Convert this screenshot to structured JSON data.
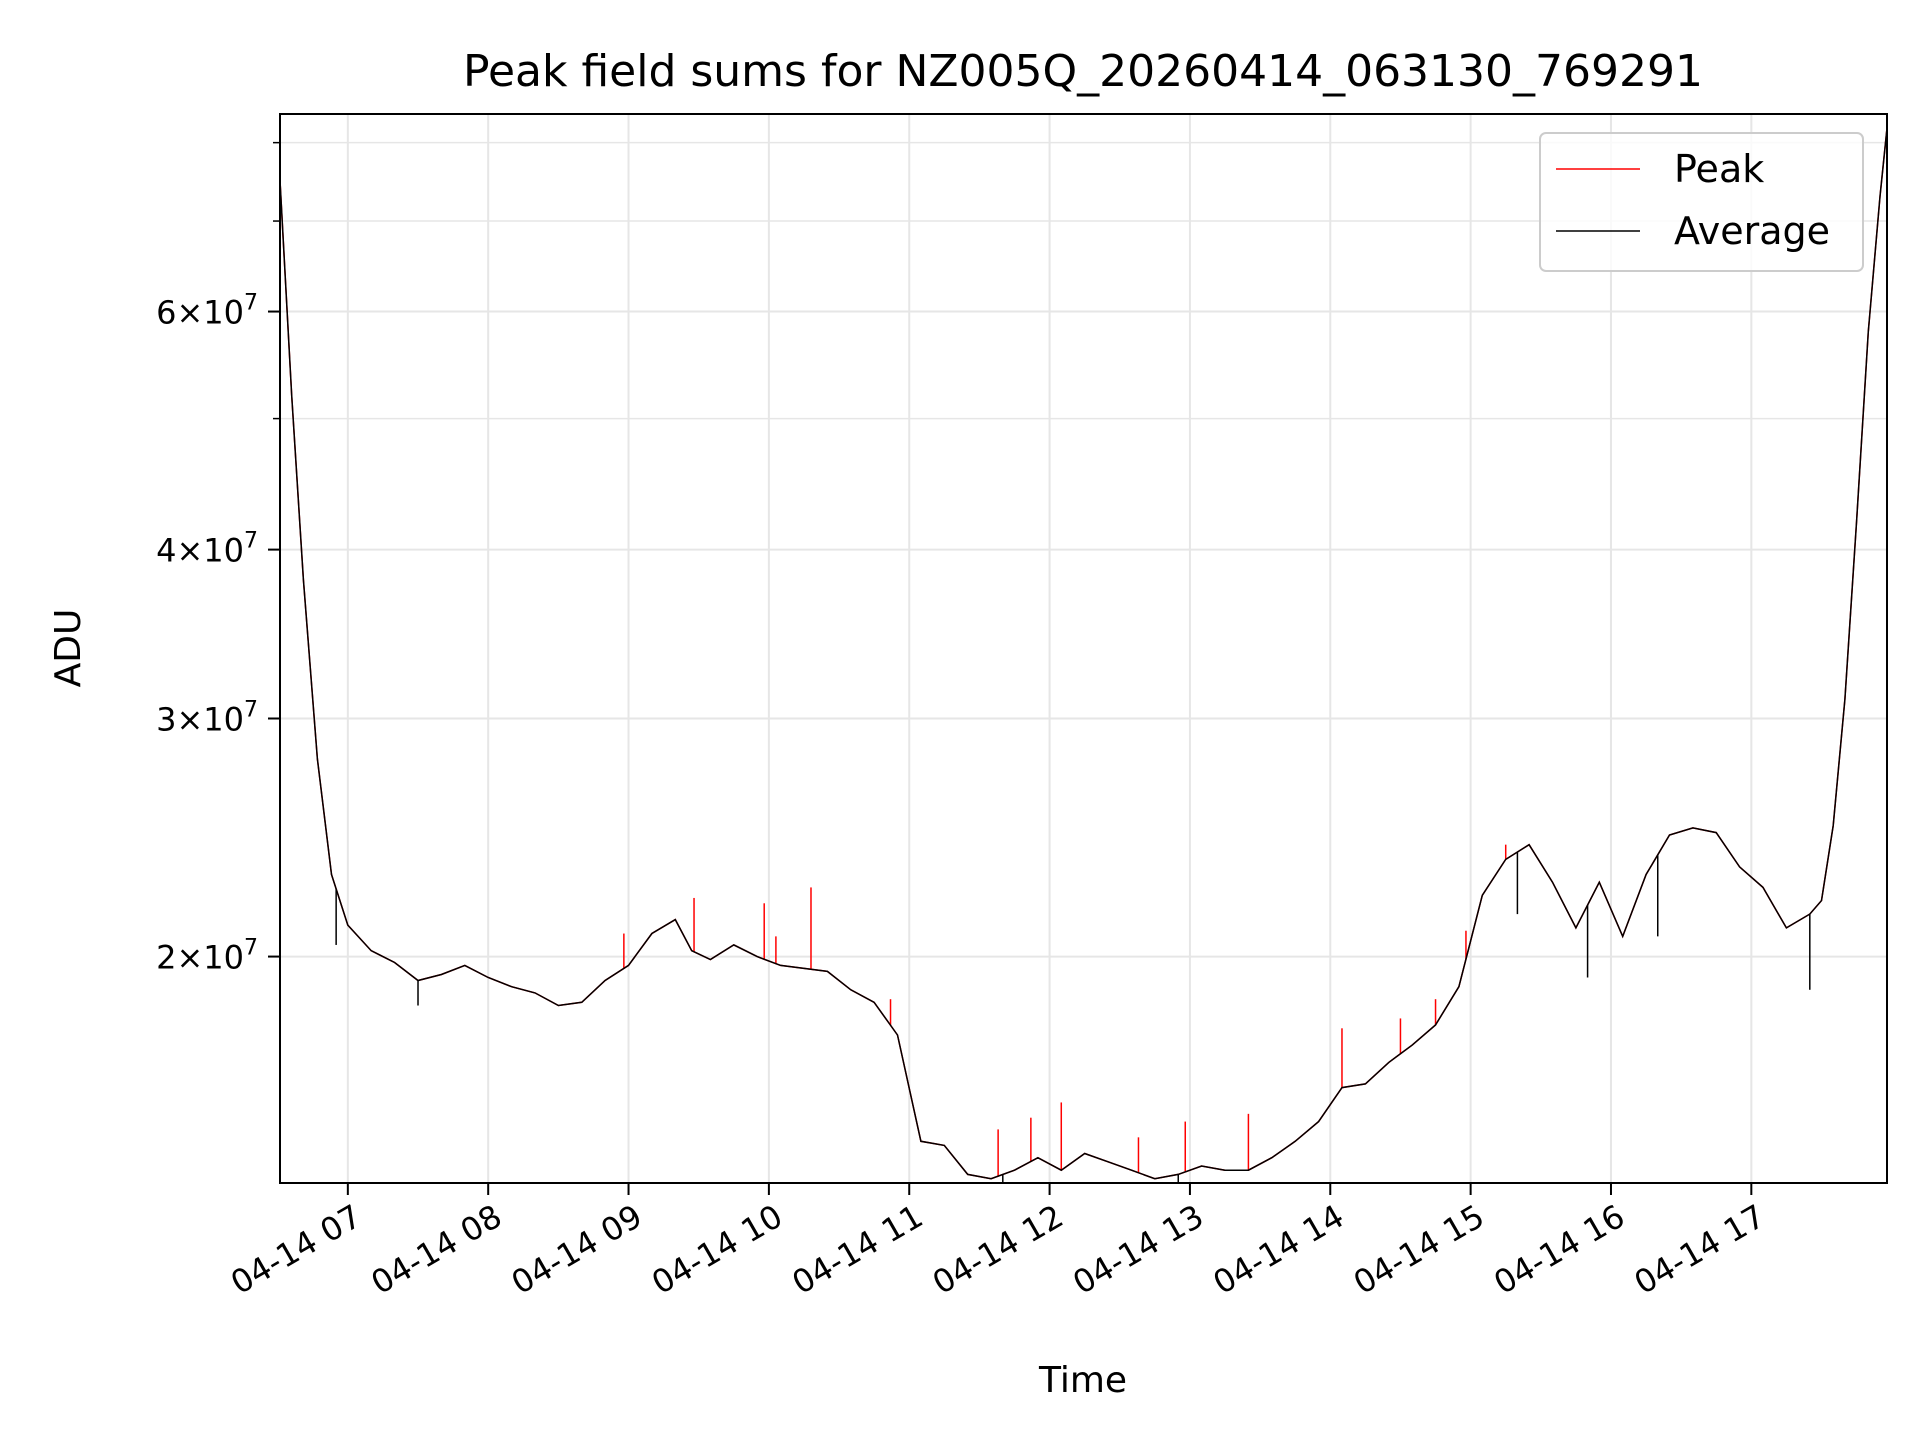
{
  "chart_data": {
    "type": "line",
    "title": "Peak field sums for NZ005Q_20260414_063130_769291",
    "xlabel": "Time",
    "ylabel": "ADU",
    "y_scale": "log",
    "grid": true,
    "legend_position": "top-right",
    "xlim": [
      "04-14 06:31",
      "04-14 17:58"
    ],
    "ylim": [
      13600000,
      84000000
    ],
    "x_ticks": [
      "04-14 07",
      "04-14 08",
      "04-14 09",
      "04-14 10",
      "04-14 11",
      "04-14 12",
      "04-14 13",
      "04-14 14",
      "04-14 15",
      "04-14 16",
      "04-14 17"
    ],
    "y_ticks": [
      {
        "value": 20000000,
        "base": "2",
        "exp": "7"
      },
      {
        "value": 30000000,
        "base": "3",
        "exp": "7"
      },
      {
        "value": 40000000,
        "base": "4",
        "exp": "7"
      },
      {
        "value": 60000000,
        "base": "6",
        "exp": "7"
      }
    ],
    "series": [
      {
        "name": "Peak",
        "color": "#ff0000"
      },
      {
        "name": "Average",
        "color": "#000000"
      }
    ],
    "x": [
      "04-14 06:31",
      "04-14 06:36",
      "04-14 06:41",
      "04-14 06:47",
      "04-14 06:53",
      "04-14 07:00",
      "04-14 07:10",
      "04-14 07:20",
      "04-14 07:30",
      "04-14 07:40",
      "04-14 07:50",
      "04-14 08:00",
      "04-14 08:10",
      "04-14 08:20",
      "04-14 08:30",
      "04-14 08:40",
      "04-14 08:50",
      "04-14 09:00",
      "04-14 09:10",
      "04-14 09:20",
      "04-14 09:27",
      "04-14 09:35",
      "04-14 09:45",
      "04-14 09:55",
      "04-14 10:05",
      "04-14 10:15",
      "04-14 10:25",
      "04-14 10:35",
      "04-14 10:45",
      "04-14 10:55",
      "04-14 11:05",
      "04-14 11:15",
      "04-14 11:25",
      "04-14 11:35",
      "04-14 11:45",
      "04-14 11:55",
      "04-14 12:05",
      "04-14 12:15",
      "04-14 12:25",
      "04-14 12:35",
      "04-14 12:45",
      "04-14 12:55",
      "04-14 13:05",
      "04-14 13:15",
      "04-14 13:25",
      "04-14 13:35",
      "04-14 13:45",
      "04-14 13:55",
      "04-14 14:05",
      "04-14 14:15",
      "04-14 14:25",
      "04-14 14:35",
      "04-14 14:45",
      "04-14 14:55",
      "04-14 15:05",
      "04-14 15:15",
      "04-14 15:25",
      "04-14 15:35",
      "04-14 15:45",
      "04-14 15:55",
      "04-14 16:05",
      "04-14 16:15",
      "04-14 16:25",
      "04-14 16:35",
      "04-14 16:45",
      "04-14 16:55",
      "04-14 17:05",
      "04-14 17:15",
      "04-14 17:25",
      "04-14 17:30",
      "04-14 17:35",
      "04-14 17:40",
      "04-14 17:45",
      "04-14 17:50",
      "04-14 17:55",
      "04-14 17:58"
    ],
    "average": [
      75000000,
      52000000,
      38000000,
      28000000,
      23000000,
      21100000,
      20200000,
      19800000,
      19200000,
      19400000,
      19700000,
      19300000,
      19000000,
      18800000,
      18400000,
      18500000,
      19200000,
      19700000,
      20800000,
      21300000,
      20200000,
      19900000,
      20400000,
      20000000,
      19700000,
      19600000,
      19500000,
      18900000,
      18500000,
      17500000,
      14600000,
      14500000,
      13800000,
      13700000,
      13900000,
      14200000,
      13900000,
      14300000,
      14100000,
      13900000,
      13700000,
      13800000,
      14000000,
      13900000,
      13900000,
      14200000,
      14600000,
      15100000,
      16000000,
      16100000,
      16700000,
      17200000,
      17800000,
      19000000,
      22200000,
      23600000,
      24200000,
      22700000,
      21000000,
      22700000,
      20700000,
      23000000,
      24600000,
      24900000,
      24700000,
      23300000,
      22500000,
      21000000,
      21500000,
      22000000,
      25000000,
      31000000,
      42000000,
      58000000,
      73000000,
      82000000
    ],
    "peak_spikes": [
      {
        "x": "04-14 08:58",
        "value": 20800000
      },
      {
        "x": "04-14 09:28",
        "value": 22100000
      },
      {
        "x": "04-14 09:58",
        "value": 21900000
      },
      {
        "x": "04-14 10:03",
        "value": 20700000
      },
      {
        "x": "04-14 10:18",
        "value": 22500000
      },
      {
        "x": "04-14 10:52",
        "value": 18600000
      },
      {
        "x": "04-14 11:38",
        "value": 14900000
      },
      {
        "x": "04-14 11:52",
        "value": 15200000
      },
      {
        "x": "04-14 12:05",
        "value": 15600000
      },
      {
        "x": "04-14 12:38",
        "value": 14700000
      },
      {
        "x": "04-14 12:58",
        "value": 15100000
      },
      {
        "x": "04-14 13:25",
        "value": 15300000
      },
      {
        "x": "04-14 14:05",
        "value": 17700000
      },
      {
        "x": "04-14 14:30",
        "value": 18000000
      },
      {
        "x": "04-14 14:45",
        "value": 18600000
      },
      {
        "x": "04-14 14:58",
        "value": 20900000
      },
      {
        "x": "04-14 15:15",
        "value": 24200000
      }
    ],
    "average_dips": [
      {
        "x": "04-14 06:55",
        "value": 20400000
      },
      {
        "x": "04-14 07:30",
        "value": 18400000
      },
      {
        "x": "04-14 11:40",
        "value": 13500000
      },
      {
        "x": "04-14 12:55",
        "value": 13600000
      },
      {
        "x": "04-14 15:20",
        "value": 21500000
      },
      {
        "x": "04-14 15:50",
        "value": 19300000
      },
      {
        "x": "04-14 16:20",
        "value": 20700000
      },
      {
        "x": "04-14 17:25",
        "value": 18900000
      }
    ]
  }
}
